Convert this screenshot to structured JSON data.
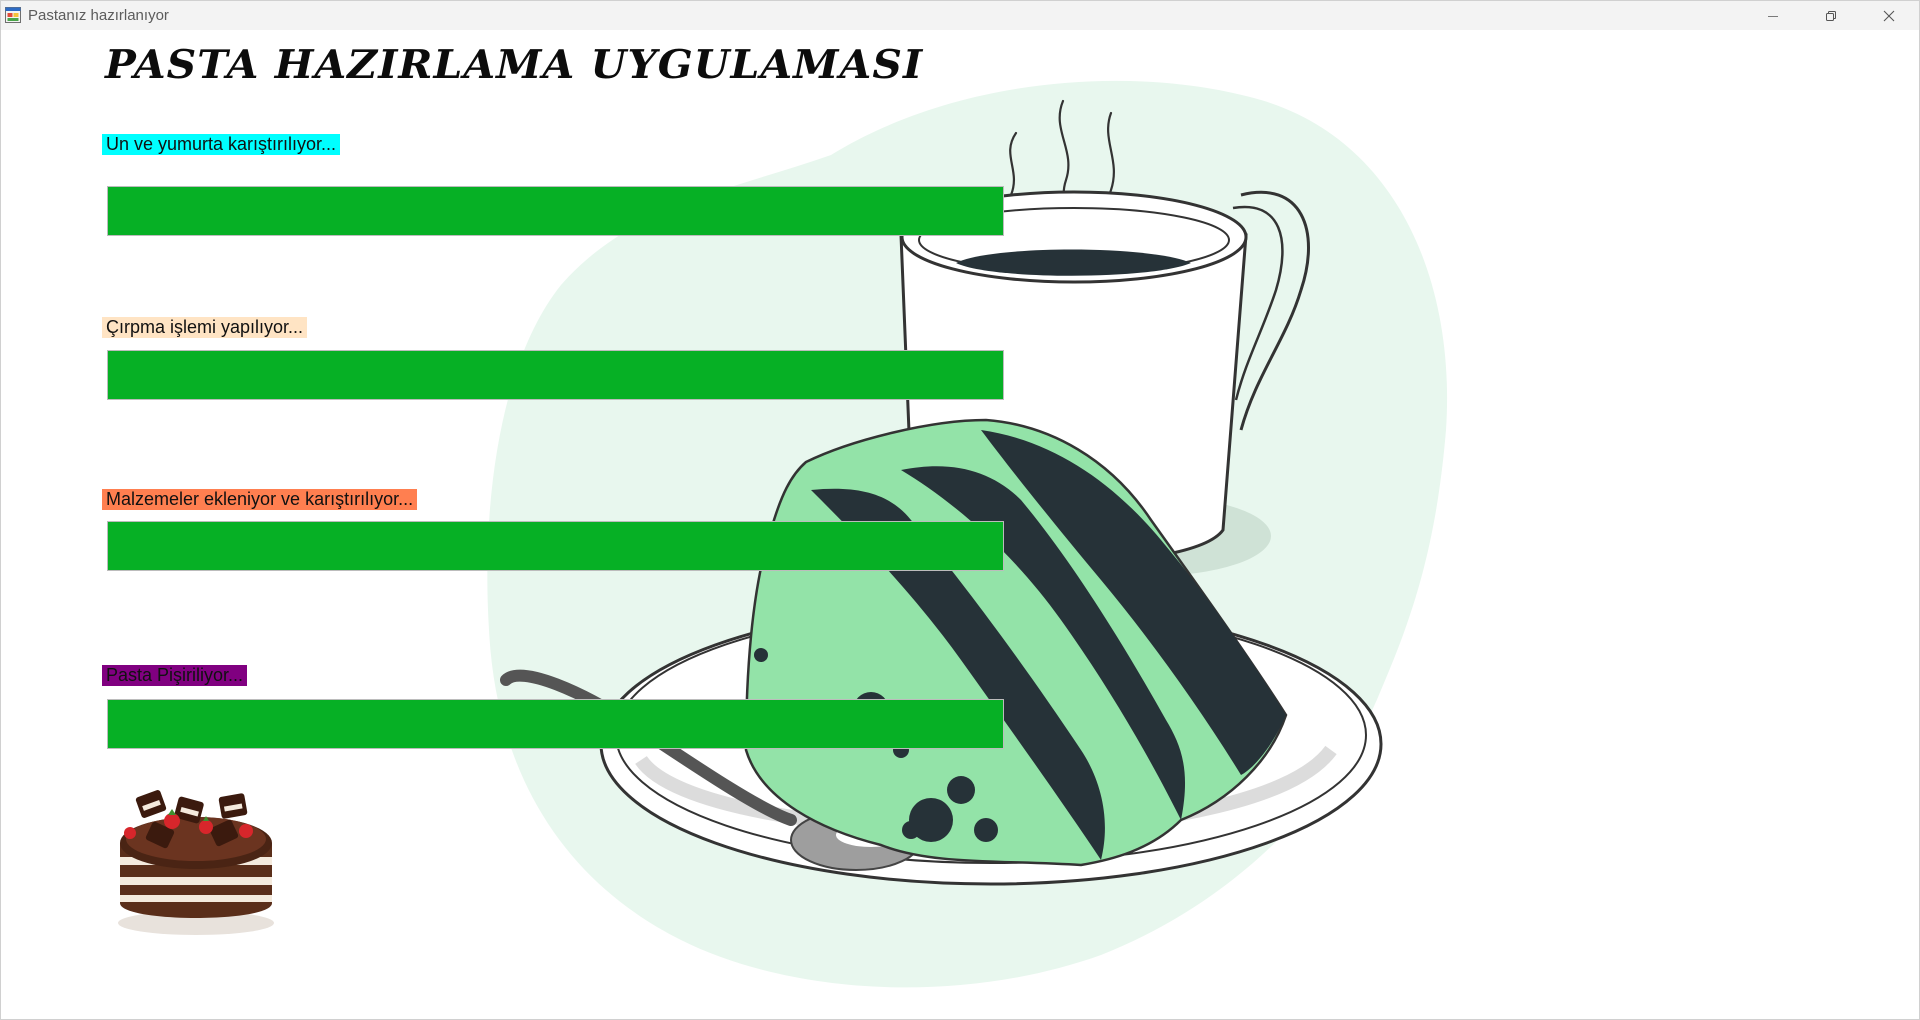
{
  "window": {
    "title": "Pastanız hazırlanıyor",
    "icon": "winforms-app-icon",
    "controls": [
      "minimize-icon",
      "restore-icon",
      "close-icon"
    ]
  },
  "heading": "PASTA HAZIRLAMA UYGULAMASI",
  "steps": [
    {
      "label": "Un ve yumurta karıştırılıyor...",
      "label_bg": "#00ffff",
      "progress": 1.0
    },
    {
      "label": "Çırpma işlemi yapılıyor...",
      "label_bg": "#ffe4c4",
      "progress": 1.0
    },
    {
      "label": "Malzemeler ekleniyor ve karıştırılıyor...",
      "label_bg": "#ff7f50",
      "progress": 1.0
    },
    {
      "label": "Pasta Pişiriliyor...",
      "label_bg": "#800080",
      "progress": 1.0
    }
  ],
  "colors": {
    "progress_fill": "#06b025",
    "progress_track": "#e6e6e6",
    "blob": "#e8f7ee",
    "cake_mint": "#93e3a8",
    "cake_dark": "#263238"
  },
  "images": {
    "background": "coffee-cup-and-cake-slice-illustration",
    "cake": "chocolate-layer-cake-photo"
  }
}
